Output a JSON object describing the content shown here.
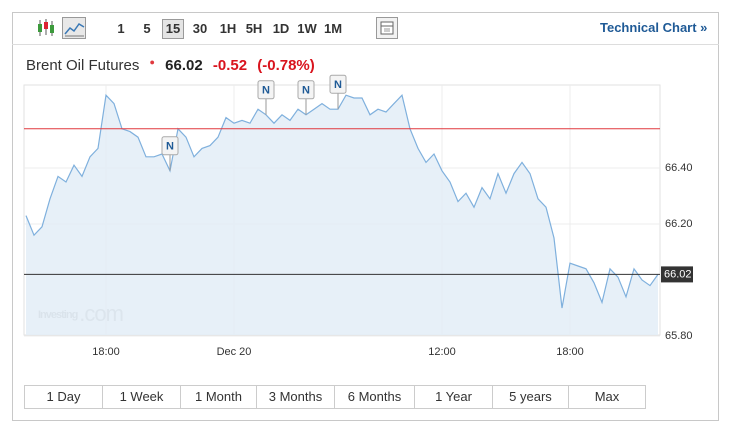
{
  "toolbar": {
    "intervals": [
      "1",
      "5",
      "15",
      "30",
      "1H",
      "5H",
      "1D",
      "1W",
      "1M"
    ],
    "active_interval": "15",
    "link": "Technical Chart »"
  },
  "header": {
    "title": "Brent Oil Futures",
    "price": "66.02",
    "change": "-0.52",
    "change_pct": "(-0.78%)"
  },
  "watermark": {
    "brand": "Investing",
    "suffix": ".com"
  },
  "ranges": [
    "1 Day",
    "1 Week",
    "1 Month",
    "3 Months",
    "6 Months",
    "1 Year",
    "5 years",
    "Max"
  ],
  "chart_data": {
    "type": "area",
    "color": "#7fb0dd",
    "fill": "#e3edf7",
    "values": [
      66.23,
      66.16,
      66.19,
      66.29,
      66.37,
      66.35,
      66.41,
      66.37,
      66.44,
      66.47,
      66.66,
      66.63,
      66.54,
      66.53,
      66.51,
      66.44,
      66.44,
      66.45,
      66.39,
      66.54,
      66.51,
      66.44,
      66.47,
      66.48,
      66.51,
      66.58,
      66.56,
      66.57,
      66.56,
      66.61,
      66.59,
      66.56,
      66.59,
      66.57,
      66.61,
      66.59,
      66.61,
      66.63,
      66.61,
      66.61,
      66.66,
      66.65,
      66.65,
      66.59,
      66.61,
      66.6,
      66.63,
      66.66,
      66.54,
      66.47,
      66.42,
      66.45,
      66.39,
      66.35,
      66.28,
      66.31,
      66.26,
      66.33,
      66.29,
      66.38,
      66.31,
      66.38,
      66.42,
      66.38,
      66.29,
      66.26,
      66.15,
      65.9,
      66.06,
      66.05,
      66.04,
      65.99,
      65.92,
      66.04,
      66.01,
      65.94,
      66.04,
      66.0,
      65.98,
      66.02
    ],
    "xlim": [
      0,
      79
    ],
    "xticks": [
      {
        "value": 10,
        "label": "18:00"
      },
      {
        "value": 26,
        "label": "Dec 20"
      },
      {
        "value": 52,
        "label": "12:00"
      },
      {
        "value": 68,
        "label": "18:00"
      }
    ],
    "ylim": [
      65.8,
      66.7
    ],
    "yticks": [
      {
        "value": 65.8,
        "label": "65.80"
      },
      {
        "value": 66.2,
        "label": "66.20"
      },
      {
        "value": 66.4,
        "label": "66.40"
      }
    ],
    "grid": true,
    "current_value": 66.02,
    "previous_close": {
      "value": 66.54,
      "color": "#e0393e"
    },
    "annotations": [
      {
        "label": "N",
        "x": 18
      },
      {
        "label": "N",
        "x": 30
      },
      {
        "label": "N",
        "x": 35
      },
      {
        "label": "N",
        "x": 39
      }
    ]
  }
}
